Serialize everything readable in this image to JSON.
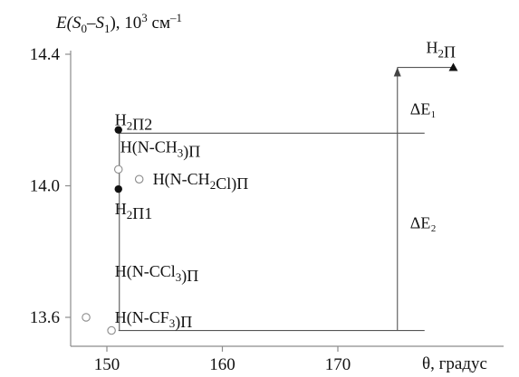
{
  "chart_data": {
    "type": "scatter",
    "ylabel_parts": [
      "E(S",
      "0",
      "–S",
      "1",
      "), 10",
      "3",
      " см",
      "–1"
    ],
    "xlabel": "θ, градус",
    "xlim": [
      146,
      182
    ],
    "ylim": [
      13.55,
      14.43
    ],
    "xticks": [
      150,
      160,
      170
    ],
    "yticks": [
      13.6,
      14.0,
      14.4
    ],
    "tick_labels_x": [
      "150",
      "160",
      "170"
    ],
    "tick_labels_y": [
      "13.6",
      "14.0",
      "14.4"
    ],
    "points": [
      {
        "x": 180.0,
        "y": 14.36,
        "marker": "triangle",
        "label": "H₂П"
      },
      {
        "x": 151.0,
        "y": 14.17,
        "marker": "filled-circle",
        "label": "H₂П2"
      },
      {
        "x": 151.0,
        "y": 13.99,
        "marker": "filled-circle",
        "label": "H₂П1"
      },
      {
        "x": 151.0,
        "y": 14.05,
        "marker": "open-circle",
        "label": ""
      },
      {
        "x": 152.8,
        "y": 14.02,
        "marker": "open-circle",
        "label": "H(N-CH₂Cl)П"
      },
      {
        "x": 148.2,
        "y": 13.6,
        "marker": "open-circle",
        "label": ""
      },
      {
        "x": 150.4,
        "y": 13.56,
        "marker": "open-circle",
        "label": ""
      }
    ],
    "extra_labels": [
      "H(N-CH₃)П",
      "H(N-CCl₃)П",
      "H(N-CF₃)П"
    ],
    "annotations": [
      {
        "label": "ΔE₁",
        "from": 14.16,
        "to": 14.36,
        "x": 175
      },
      {
        "label": "ΔE₂",
        "from": 13.56,
        "to": 14.16,
        "x": 175
      }
    ],
    "reference_levels": [
      14.16,
      13.56
    ],
    "grid": false,
    "colors": {
      "axis": "#8c8c8c",
      "marker": "#111111",
      "line": "#555555"
    }
  }
}
